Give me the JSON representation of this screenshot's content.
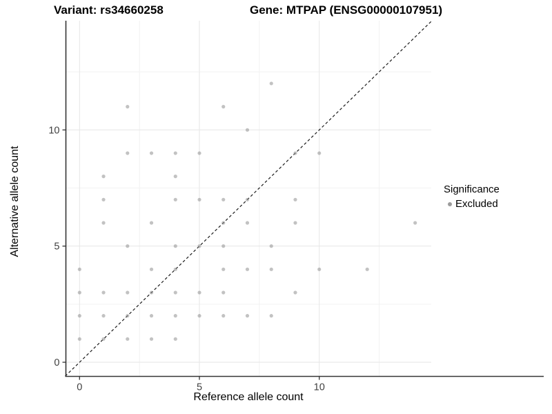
{
  "titles": {
    "variant": "Variant: rs34660258",
    "gene": "Gene: MTPAP (ENSG00000107951)"
  },
  "chart_data": {
    "type": "scatter",
    "xlabel": "Reference allele count",
    "ylabel": "Alternative allele count",
    "x_ticks": [
      0,
      5,
      10
    ],
    "y_ticks": [
      0,
      5,
      10
    ],
    "minor_x": [
      2.5,
      7.5,
      12.5
    ],
    "minor_y": [
      2.5,
      7.5,
      12.5
    ],
    "xlim": [
      -0.6,
      14.7
    ],
    "ylim": [
      -0.6,
      14.7
    ],
    "grid": true,
    "identity_line": {
      "style": "dashed",
      "color": "#1a1a1a"
    },
    "point_color": "#8f8f8f",
    "major_grid_color": "#e6e6e6",
    "minor_grid_color": "#f2f2f2",
    "axis_color": "#333333",
    "tick_label_color": "#404040",
    "legend": {
      "title": "Significance",
      "position": "right",
      "items": [
        {
          "label": "Excluded",
          "color": "#9b9b9b"
        }
      ]
    },
    "series": [
      {
        "name": "Excluded",
        "points": [
          [
            8,
            12
          ],
          [
            2,
            11
          ],
          [
            6,
            11
          ],
          [
            7,
            10
          ],
          [
            2,
            9
          ],
          [
            3,
            9
          ],
          [
            4,
            9
          ],
          [
            5,
            9
          ],
          [
            9,
            9
          ],
          [
            10,
            9
          ],
          [
            1,
            8
          ],
          [
            4,
            8
          ],
          [
            1,
            7
          ],
          [
            4,
            7
          ],
          [
            5,
            7
          ],
          [
            6,
            7
          ],
          [
            7,
            7
          ],
          [
            9,
            7
          ],
          [
            1,
            6
          ],
          [
            3,
            6
          ],
          [
            6,
            6
          ],
          [
            7,
            6
          ],
          [
            9,
            6
          ],
          [
            14,
            6
          ],
          [
            2,
            5
          ],
          [
            4,
            5
          ],
          [
            5,
            5
          ],
          [
            6,
            5
          ],
          [
            8,
            5
          ],
          [
            0,
            4
          ],
          [
            3,
            4
          ],
          [
            4,
            4
          ],
          [
            6,
            4
          ],
          [
            7,
            4
          ],
          [
            8,
            4
          ],
          [
            10,
            4
          ],
          [
            12,
            4
          ],
          [
            0,
            3
          ],
          [
            1,
            3
          ],
          [
            2,
            3
          ],
          [
            3,
            3
          ],
          [
            4,
            3
          ],
          [
            5,
            3
          ],
          [
            6,
            3
          ],
          [
            9,
            3
          ],
          [
            0,
            2
          ],
          [
            1,
            2
          ],
          [
            2,
            2
          ],
          [
            3,
            2
          ],
          [
            4,
            2
          ],
          [
            5,
            2
          ],
          [
            6,
            2
          ],
          [
            7,
            2
          ],
          [
            8,
            2
          ],
          [
            0,
            1
          ],
          [
            1,
            1
          ],
          [
            2,
            1
          ],
          [
            3,
            1
          ],
          [
            4,
            1
          ]
        ]
      }
    ]
  }
}
